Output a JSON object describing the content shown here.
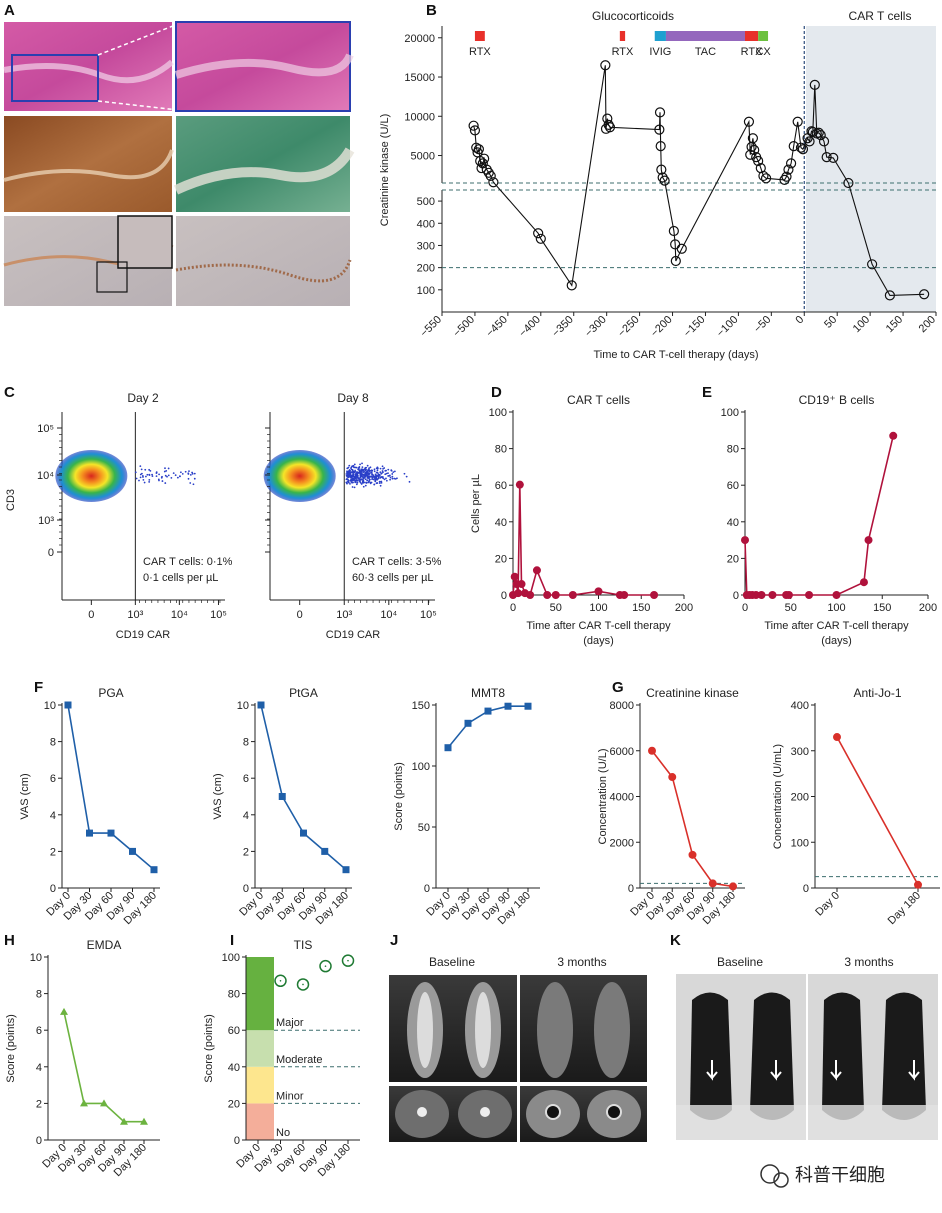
{
  "panel_labels": {
    "A": "A",
    "B": "B",
    "C": "C",
    "D": "D",
    "E": "E",
    "F": "F",
    "G": "G",
    "H": "H",
    "I": "I",
    "J": "J",
    "K": "K"
  },
  "watermark": "科普干细胞",
  "colors": {
    "blue": "#1f5fa8",
    "red": "#d9302a",
    "crimson": "#b0123c",
    "green": "#6cb33f",
    "darkgreen": "#1f7a33",
    "dash": "#3d6e6e",
    "shade": "#e4e9ee"
  },
  "chart_data": [
    {
      "id": "B",
      "type": "line",
      "xlabel": "Time to CAR T-cell therapy (days)",
      "ylabel": "Creatinine kinase (U/L)",
      "xlim": [
        -550,
        200
      ],
      "xticks": [
        "-550",
        "-500",
        "-450",
        "-400",
        "-350",
        "-300",
        "-250",
        "-200",
        "-150",
        "-100",
        "-50",
        "0",
        "50",
        "100",
        "150",
        "200"
      ],
      "yticks_upper": [
        "5000",
        "10000",
        "15000",
        "20000"
      ],
      "yticks_lower": [
        "100",
        "200",
        "300",
        "400",
        "500"
      ],
      "shaded_label": "CAR T cells",
      "treatments": [
        {
          "label": "RTX",
          "start": -500,
          "end": -485,
          "color": "#e8302a"
        },
        {
          "label": "RTX",
          "start": -280,
          "end": -272,
          "color": "#e8302a"
        },
        {
          "label": "IVIG",
          "start": -227,
          "end": -210,
          "color": "#1fa0d0"
        },
        {
          "label": "TAC",
          "start": -210,
          "end": -90,
          "color": "#9467bd"
        },
        {
          "label": "RTX",
          "start": -90,
          "end": -70,
          "color": "#e8302a"
        },
        {
          "label": "CX",
          "start": -70,
          "end": -55,
          "color": "#6cc13f"
        }
      ],
      "glucocorticoids_label": "Glucocorticoids",
      "points": [
        [
          -502,
          8800
        ],
        [
          -500,
          8200
        ],
        [
          -498,
          6000
        ],
        [
          -496,
          5400
        ],
        [
          -494,
          5800
        ],
        [
          -492,
          4300
        ],
        [
          -490,
          3400
        ],
        [
          -488,
          4000
        ],
        [
          -486,
          4600
        ],
        [
          -482,
          3200
        ],
        [
          -479,
          2800
        ],
        [
          -476,
          2400
        ],
        [
          -472,
          1600
        ],
        [
          -404,
          355
        ],
        [
          -400,
          330
        ],
        [
          -353,
          120
        ],
        [
          -302,
          16500
        ],
        [
          -301,
          8400
        ],
        [
          -299,
          9700
        ],
        [
          -297,
          8900
        ],
        [
          -295,
          8600
        ],
        [
          -220,
          8300
        ],
        [
          -219,
          10500
        ],
        [
          -218,
          6200
        ],
        [
          -217,
          3200
        ],
        [
          -215,
          2200
        ],
        [
          -212,
          1800
        ],
        [
          -198,
          365
        ],
        [
          -196,
          305
        ],
        [
          -195,
          230
        ],
        [
          -186,
          285
        ],
        [
          -84,
          9300
        ],
        [
          -82,
          5100
        ],
        [
          -80,
          6100
        ],
        [
          -78,
          7200
        ],
        [
          -76,
          5700
        ],
        [
          -73,
          4800
        ],
        [
          -70,
          4300
        ],
        [
          -66,
          3400
        ],
        [
          -62,
          2400
        ],
        [
          -58,
          2100
        ],
        [
          -30,
          1900
        ],
        [
          -27,
          2300
        ],
        [
          -24,
          3200
        ],
        [
          -20,
          4000
        ],
        [
          -16,
          6200
        ],
        [
          -10,
          9300
        ],
        [
          -5,
          6000
        ],
        [
          -2,
          5800
        ],
        [
          5,
          7200
        ],
        [
          8,
          6800
        ],
        [
          11,
          8100
        ],
        [
          13,
          8000
        ],
        [
          16,
          14000
        ],
        [
          19,
          7800
        ],
        [
          22,
          7900
        ],
        [
          25,
          7600
        ],
        [
          30,
          6800
        ],
        [
          34,
          4800
        ],
        [
          44,
          4700
        ],
        [
          67,
          1500
        ],
        [
          103,
          215
        ],
        [
          130,
          75
        ],
        [
          182,
          80
        ]
      ]
    },
    {
      "id": "C1",
      "type": "scatter",
      "title": "Day 2",
      "xlabel": "CD19 CAR",
      "ylabel": "CD3",
      "xticks": [
        "0",
        "10³",
        "10⁴",
        "10⁵"
      ],
      "yticks": [
        "0",
        "10³",
        "10⁴",
        "10⁵"
      ],
      "annotation": [
        "CAR T cells: 0·1%",
        "0·1 cells per µL"
      ]
    },
    {
      "id": "C2",
      "type": "scatter",
      "title": "Day 8",
      "xlabel": "CD19 CAR",
      "xticks": [
        "0",
        "10³",
        "10⁴",
        "10⁵"
      ],
      "annotation": [
        "CAR T cells: 3·5%",
        "60·3 cells per µL"
      ]
    },
    {
      "id": "D",
      "type": "line",
      "title": "CAR T cells",
      "ylabel": "Cells per µL",
      "xlabel": [
        "Time after CAR T-cell therapy",
        "(days)"
      ],
      "xlim": [
        0,
        200
      ],
      "ylim": [
        0,
        100
      ],
      "xticks": [
        0,
        50,
        100,
        150,
        200
      ],
      "yticks": [
        0,
        20,
        40,
        60,
        80,
        100
      ],
      "x": [
        0,
        2,
        4,
        6,
        8,
        10,
        14,
        20,
        28,
        40,
        50,
        70,
        100,
        125,
        130,
        165
      ],
      "y": [
        0,
        10,
        6,
        1,
        60.3,
        6,
        1,
        0,
        13.5,
        0,
        0,
        0,
        2,
        0,
        0,
        0
      ]
    },
    {
      "id": "E",
      "type": "line",
      "title": "CD19⁺ B cells",
      "xlabel": [
        "Time after CAR T-cell therapy",
        "(days)"
      ],
      "xlim": [
        0,
        200
      ],
      "ylim": [
        0,
        100
      ],
      "xticks": [
        0,
        50,
        100,
        150,
        200
      ],
      "yticks": [
        0,
        20,
        40,
        60,
        80,
        100
      ],
      "x": [
        0,
        2,
        5,
        8,
        12,
        18,
        30,
        45,
        48,
        70,
        100,
        130,
        135,
        162
      ],
      "y": [
        30,
        0,
        0,
        0,
        0,
        0,
        0,
        0,
        0,
        0,
        0,
        7,
        30,
        87
      ]
    },
    {
      "id": "F1",
      "type": "line",
      "title": "PGA",
      "ylabel": "VAS (cm)",
      "categories": [
        "Day 0",
        "Day 30",
        "Day 60",
        "Day 90",
        "Day 180"
      ],
      "ylim": [
        0,
        10
      ],
      "yticks": [
        0,
        2,
        4,
        6,
        8,
        10
      ],
      "values": [
        10,
        3,
        3,
        2,
        1
      ]
    },
    {
      "id": "F2",
      "type": "line",
      "title": "PtGA",
      "ylabel": "VAS (cm)",
      "categories": [
        "Day 0",
        "Day 30",
        "Day 60",
        "Day 90",
        "Day 180"
      ],
      "ylim": [
        0,
        10
      ],
      "yticks": [
        0,
        2,
        4,
        6,
        8,
        10
      ],
      "values": [
        10,
        5,
        3,
        2,
        1
      ]
    },
    {
      "id": "F3",
      "type": "line",
      "title": "MMT8",
      "ylabel": "Score (points)",
      "categories": [
        "Day 0",
        "Day 30",
        "Day 60",
        "Day 90",
        "Day 180"
      ],
      "ylim": [
        0,
        150
      ],
      "yticks": [
        0,
        50,
        100,
        150
      ],
      "values": [
        115,
        135,
        145,
        149,
        149
      ]
    },
    {
      "id": "G1",
      "type": "line",
      "title": "Creatinine kinase",
      "ylabel": "Concentration (U/L)",
      "categories": [
        "Day 0",
        "Day 30",
        "Day 60",
        "Day 90",
        "Day 180"
      ],
      "ylim": [
        0,
        8000
      ],
      "yticks": [
        0,
        2000,
        4000,
        6000,
        8000
      ],
      "values": [
        6000,
        4850,
        1450,
        200,
        70
      ],
      "reference": 200
    },
    {
      "id": "G2",
      "type": "line",
      "title": "Anti-Jo-1",
      "ylabel": "Concentration (U/mL)",
      "categories": [
        "Day 0",
        "Day 180"
      ],
      "ylim": [
        0,
        400
      ],
      "yticks": [
        0,
        100,
        200,
        300,
        400
      ],
      "values": [
        330,
        7
      ],
      "reference": 25
    },
    {
      "id": "H",
      "type": "line",
      "title": "EMDA",
      "ylabel": "Score (points)",
      "categories": [
        "Day 0",
        "Day 30",
        "Day 60",
        "Day 90",
        "Day 180"
      ],
      "ylim": [
        0,
        10
      ],
      "yticks": [
        0,
        2,
        4,
        6,
        8,
        10
      ],
      "values": [
        7,
        2,
        2,
        1,
        1
      ]
    },
    {
      "id": "I",
      "type": "scatter",
      "title": "TIS",
      "ylabel": "Score (points)",
      "categories": [
        "Day 0",
        "Day 30",
        "Day 60",
        "Day 90",
        "Day 180"
      ],
      "ylim": [
        0,
        100
      ],
      "yticks": [
        0,
        20,
        40,
        60,
        80,
        100
      ],
      "values": [
        null,
        87,
        85,
        95,
        98
      ],
      "bands": [
        {
          "label": "No",
          "from": 0,
          "to": 20,
          "color": "#f4ae9a"
        },
        {
          "label": "Minor",
          "from": 20,
          "to": 40,
          "color": "#fde68e"
        },
        {
          "label": "Moderate",
          "from": 40,
          "to": 60,
          "color": "#c7dfae"
        },
        {
          "label": "Major",
          "from": 60,
          "to": 100,
          "color": "#66b140"
        }
      ]
    }
  ],
  "panel_j": {
    "left": "Baseline",
    "right": "3 months"
  },
  "panel_k": {
    "left": "Baseline",
    "right": "3 months"
  }
}
